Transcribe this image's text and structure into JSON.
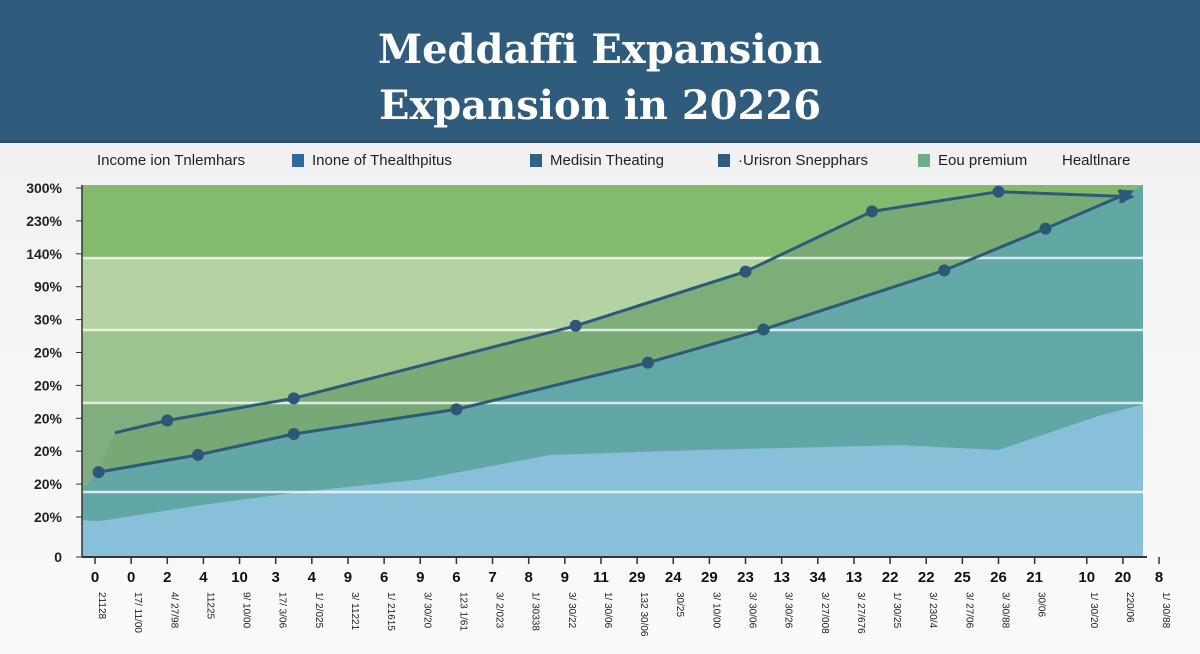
{
  "title": {
    "line1": "Meddaffi Expansion",
    "line2": "Expansion in 20226"
  },
  "legend": [
    {
      "label": "Income ion Tnlemhars",
      "color": null
    },
    {
      "label": "Inone of Thealthpitus",
      "color": "#2f6a9a"
    },
    {
      "label": "Medisin Theating",
      "color": "#2e6385"
    },
    {
      "label": "·Urisron Snepphars",
      "color": "#2e5b85"
    },
    {
      "label": "Eou premium",
      "color": "#6fac8a"
    },
    {
      "label": "Healtlnare",
      "color": null
    }
  ],
  "chart_data": {
    "type": "line",
    "title": "Meddaffi Expansion Expansion in 20226",
    "y_tick_labels": [
      "0",
      "20%",
      "20%",
      "20%",
      "20%",
      "20%",
      "20%",
      "30%",
      "90%",
      "140%",
      "230%",
      "300%"
    ],
    "ylim": [
      0,
      300
    ],
    "x_tick_labels": [
      "0",
      "0",
      "2",
      "4",
      "10",
      "3",
      "4",
      "9",
      "6",
      "9",
      "6",
      "7",
      "8",
      "9",
      "11",
      "29",
      "24",
      "29",
      "23",
      "13",
      "34",
      "13",
      "22",
      "22",
      "25",
      "26",
      "21",
      "10",
      "20",
      "8"
    ],
    "x_sub_labels": [
      "21128",
      "17/ 11/00",
      "4/ 27/98",
      "11225",
      "9/ 10/00",
      "17/ 3/06",
      "1/ 2/025",
      "3/ 11221",
      "1/ 21615",
      "3/ 30/20",
      "123 1/61",
      "3/ 2/023",
      "1/ 30338",
      "3/ 30/22",
      "1/ 30/06",
      "132 30/06",
      "30/25",
      "3/ 10/00",
      "3/ 30/06",
      "3/ 30/26",
      "3/ 27/008",
      "3/ 27/676",
      "1/ 30/25",
      "3/ 230/4",
      "3/ 27/06",
      "3/ 30/88",
      "30/06",
      "1/ 30/20",
      "220/06",
      "1/ 30/88"
    ],
    "grid": true,
    "legend_position": "top",
    "colors": {
      "line": "#2d5a78",
      "band_top": "#82ba6e",
      "band_light": "#b3d4a2",
      "band_mid": "#9dc48d",
      "between": "#77a874",
      "teal": "#5fa6a8",
      "blue": "#8cc3de",
      "header": "#2f5b7d"
    },
    "series": [
      {
        "points": [
          [
            0.55,
            101
          ],
          [
            2.0,
            111
          ],
          [
            5.5,
            129
          ],
          [
            13.3,
            188
          ],
          [
            18.0,
            232
          ],
          [
            21.5,
            281
          ],
          [
            25.0,
            297
          ],
          [
            28.6,
            293
          ]
        ],
        "markers": [
          false,
          true,
          true,
          true,
          true,
          true,
          true,
          false
        ],
        "arrow_end": true
      },
      {
        "points": [
          [
            0.1,
            69
          ],
          [
            2.85,
            83
          ],
          [
            5.5,
            100
          ],
          [
            10.0,
            120
          ],
          [
            15.3,
            158
          ],
          [
            18.5,
            185
          ],
          [
            23.5,
            233
          ],
          [
            26.3,
            267
          ],
          [
            28.6,
            296
          ]
        ],
        "markers": [
          true,
          true,
          true,
          true,
          true,
          true,
          true,
          true,
          false
        ],
        "arrow_end": true
      }
    ],
    "area": {
      "points": [
        [
          -0.36,
          30
        ],
        [
          0.1,
          29
        ],
        [
          2.9,
          42
        ],
        [
          5.7,
          53
        ],
        [
          9,
          63
        ],
        [
          12.6,
          83
        ],
        [
          16.7,
          87
        ],
        [
          22.3,
          91
        ],
        [
          25,
          87
        ],
        [
          27.8,
          115
        ],
        [
          29,
          124
        ]
      ]
    }
  }
}
